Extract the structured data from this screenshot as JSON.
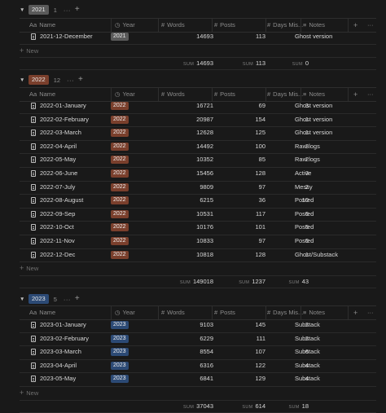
{
  "columns": {
    "name": "Name",
    "name_icon": "Aa",
    "year": "Year",
    "year_icon": "clock-icon",
    "words": "Words",
    "words_icon": "#",
    "posts": "Posts",
    "posts_icon": "#",
    "days": "Days Mis...",
    "days_icon": "#",
    "notes": "Notes",
    "notes_icon": "lines-icon",
    "add": "+",
    "more": "···"
  },
  "new_label": "New",
  "sum_label": "SUM",
  "colors": {
    "tag2021": "#5a5a5a",
    "tag2022": "#7a3f2c",
    "tag2023": "#2c4a75"
  },
  "groups": [
    {
      "tag": "2021",
      "count": "1",
      "rows": [
        {
          "name": "2021-12-December",
          "year": "2021",
          "words": "14693",
          "posts": "113",
          "days": "",
          "notes": "Ghost version"
        }
      ],
      "sums": {
        "words": "14693",
        "posts": "113",
        "days": "0"
      }
    },
    {
      "tag": "2022",
      "count": "12",
      "rows": [
        {
          "name": "2022-01-January",
          "year": "2022",
          "words": "16721",
          "posts": "69",
          "days": "3",
          "notes": "Ghost version"
        },
        {
          "name": "2022-02-February",
          "year": "2022",
          "words": "20987",
          "posts": "154",
          "days": "1",
          "notes": "Ghost version"
        },
        {
          "name": "2022-03-March",
          "year": "2022",
          "words": "12628",
          "posts": "125",
          "days": "1",
          "notes": "Ghost version"
        },
        {
          "name": "2022-04-April",
          "year": "2022",
          "words": "14492",
          "posts": "100",
          "days": "3",
          "notes": "Raw logs"
        },
        {
          "name": "2022-05-May",
          "year": "2022",
          "words": "10352",
          "posts": "85",
          "days": "2",
          "notes": "Raw logs"
        },
        {
          "name": "2022-06-June",
          "year": "2022",
          "words": "15456",
          "posts": "128",
          "days": "3",
          "notes": "Active"
        },
        {
          "name": "2022-07-July",
          "year": "2022",
          "words": "9809",
          "posts": "97",
          "days": "2",
          "notes": "Messy"
        },
        {
          "name": "2022-08-August",
          "year": "2022",
          "words": "6215",
          "posts": "36",
          "days": "10",
          "notes": "Posted"
        },
        {
          "name": "2022-09-Sep",
          "year": "2022",
          "words": "10531",
          "posts": "117",
          "days": "6",
          "notes": "Posted"
        },
        {
          "name": "2022-10-Oct",
          "year": "2022",
          "words": "10176",
          "posts": "101",
          "days": "5",
          "notes": "Posted"
        },
        {
          "name": "2022-11-Nov",
          "year": "2022",
          "words": "10833",
          "posts": "97",
          "days": "6",
          "notes": "Posted"
        },
        {
          "name": "2022-12-Dec",
          "year": "2022",
          "words": "10818",
          "posts": "128",
          "days": "1",
          "notes": "Ghost/Substack"
        }
      ],
      "sums": {
        "words": "149018",
        "posts": "1237",
        "days": "43"
      }
    },
    {
      "tag": "2023",
      "count": "5",
      "rows": [
        {
          "name": "2023-01-January",
          "year": "2023",
          "words": "9103",
          "posts": "145",
          "days": "2",
          "notes": "Substack"
        },
        {
          "name": "2023-02-February",
          "year": "2023",
          "words": "6229",
          "posts": "111",
          "days": "2",
          "notes": "Substack"
        },
        {
          "name": "2023-03-March",
          "year": "2023",
          "words": "8554",
          "posts": "107",
          "days": "6",
          "notes": "Substack"
        },
        {
          "name": "2023-04-April",
          "year": "2023",
          "words": "6316",
          "posts": "122",
          "days": "4",
          "notes": "Substack"
        },
        {
          "name": "2023-05-May",
          "year": "2023",
          "words": "6841",
          "posts": "129",
          "days": "4",
          "notes": "Substack"
        }
      ],
      "sums": {
        "words": "37043",
        "posts": "614",
        "days": "18"
      }
    }
  ]
}
